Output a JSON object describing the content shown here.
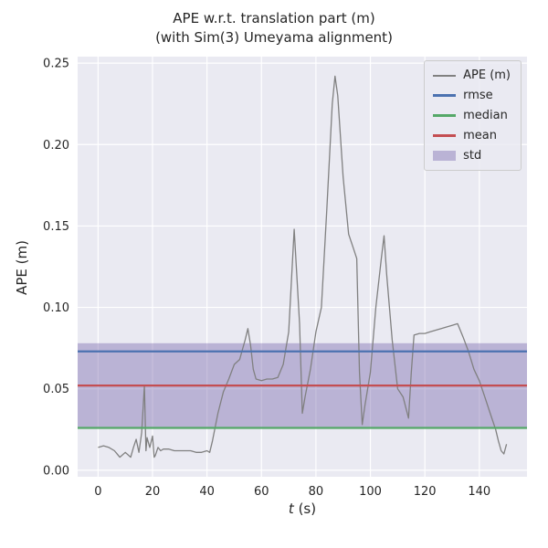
{
  "title": {
    "line1": "APE w.r.t. translation part (m)",
    "line2": "(with Sim(3) Umeyama alignment)"
  },
  "axis": {
    "xlabel_var": "t",
    "xlabel_unit": " (s)",
    "ylabel": "APE (m)"
  },
  "chart_data": {
    "type": "line",
    "title": "APE w.r.t. translation part (m)\n(with Sim(3) Umeyama alignment)",
    "xlabel": "t (s)",
    "ylabel": "APE (m)",
    "xlim": [
      -7.5,
      157.5
    ],
    "ylim": [
      -0.004,
      0.254
    ],
    "xticks": [
      0,
      20,
      40,
      60,
      80,
      100,
      120,
      140
    ],
    "yticks": [
      0.0,
      0.05,
      0.1,
      0.15,
      0.2,
      0.25
    ],
    "grid": true,
    "legend_position": "upper right",
    "styles": {
      "background": "#eaeaf2",
      "grid_color": "#ffffff",
      "text_color": "#262626"
    },
    "series": [
      {
        "name": "APE (m)",
        "kind": "line",
        "color": "#808080",
        "width": 1.3,
        "x": [
          0,
          2,
          4,
          6,
          8,
          10,
          12,
          13,
          14,
          15,
          16,
          17,
          17.6,
          18,
          19,
          20,
          20.6,
          21,
          22,
          23,
          24,
          26,
          28,
          30,
          32,
          34,
          36,
          38,
          40,
          41,
          42,
          44,
          46,
          48,
          50,
          52,
          54,
          55,
          56,
          57,
          58,
          60,
          62,
          64,
          66,
          68,
          70,
          72,
          74,
          75,
          76,
          78,
          80,
          82,
          84,
          86,
          87,
          88,
          90,
          92,
          94,
          95,
          96,
          97,
          98,
          100,
          102,
          104,
          105,
          106,
          108,
          110,
          112,
          114,
          115,
          116,
          118,
          120,
          122,
          124,
          126,
          128,
          130,
          132,
          134,
          136,
          138,
          140,
          142,
          144,
          146,
          147,
          148,
          149,
          150
        ],
        "y": [
          0.014,
          0.015,
          0.014,
          0.012,
          0.008,
          0.011,
          0.008,
          0.014,
          0.019,
          0.011,
          0.023,
          0.052,
          0.012,
          0.02,
          0.014,
          0.021,
          0.008,
          0.009,
          0.014,
          0.012,
          0.013,
          0.013,
          0.012,
          0.012,
          0.012,
          0.012,
          0.011,
          0.011,
          0.012,
          0.011,
          0.018,
          0.035,
          0.048,
          0.056,
          0.065,
          0.068,
          0.08,
          0.087,
          0.077,
          0.062,
          0.056,
          0.055,
          0.056,
          0.056,
          0.057,
          0.065,
          0.085,
          0.148,
          0.09,
          0.035,
          0.045,
          0.062,
          0.085,
          0.1,
          0.16,
          0.225,
          0.242,
          0.23,
          0.18,
          0.145,
          0.135,
          0.13,
          0.06,
          0.028,
          0.04,
          0.06,
          0.1,
          0.13,
          0.144,
          0.12,
          0.08,
          0.05,
          0.045,
          0.032,
          0.06,
          0.083,
          0.084,
          0.084,
          0.085,
          0.086,
          0.087,
          0.088,
          0.089,
          0.09,
          0.082,
          0.073,
          0.062,
          0.055,
          0.045,
          0.035,
          0.025,
          0.018,
          0.012,
          0.01,
          0.016
        ]
      },
      {
        "name": "rmse",
        "kind": "hline",
        "color": "#4c72b0",
        "width": 2.2,
        "value": 0.073
      },
      {
        "name": "median",
        "kind": "hline",
        "color": "#55a868",
        "width": 2.2,
        "value": 0.026
      },
      {
        "name": "mean",
        "kind": "hline",
        "color": "#c44e52",
        "width": 2.2,
        "value": 0.052
      },
      {
        "name": "std",
        "kind": "band",
        "color": "#8172b2",
        "alpha": 0.45,
        "low": 0.026,
        "high": 0.078
      }
    ]
  }
}
